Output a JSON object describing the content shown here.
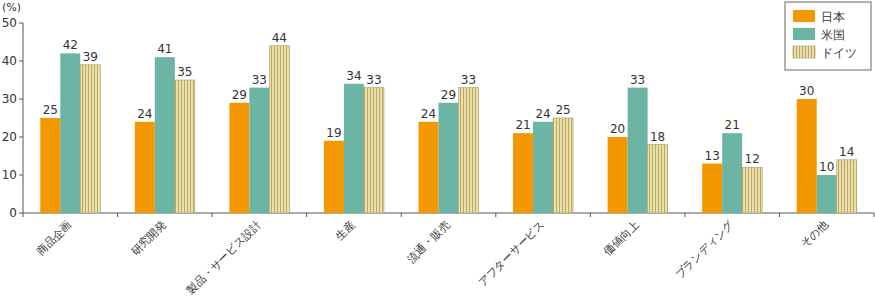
{
  "chart_data": {
    "type": "bar",
    "y_label": "(%)",
    "categories": [
      "商品企画",
      "研究開発",
      "製品・サービス設計",
      "生産",
      "流通・販売",
      "アフターサービス",
      "価値向上",
      "ブランディング",
      "その他"
    ],
    "series": [
      {
        "name": "日本",
        "color": "#f39800",
        "values": [
          25,
          24,
          29,
          19,
          24,
          21,
          20,
          13,
          30
        ]
      },
      {
        "name": "米国",
        "color": "#6cb4a4",
        "values": [
          42,
          41,
          33,
          34,
          29,
          24,
          33,
          21,
          10
        ]
      },
      {
        "name": "ドイツ",
        "color": "#ece0a8",
        "values": [
          39,
          35,
          44,
          33,
          33,
          25,
          18,
          12,
          14
        ]
      }
    ],
    "ylim": [
      0,
      50
    ],
    "yticks": [
      0,
      10,
      20,
      30,
      40,
      50
    ],
    "grid": false,
    "legend": "top-right",
    "data_labels": true
  }
}
